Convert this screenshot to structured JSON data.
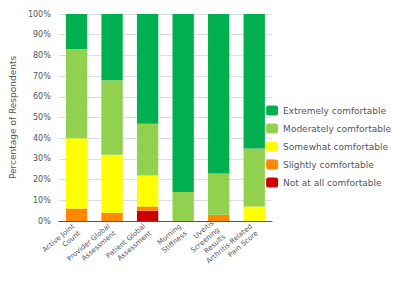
{
  "chart_data": {
    "type": "bar",
    "stacked": true,
    "ylabel": "Percentage of Respondents",
    "categories": [
      "Active Joint\nCount",
      "Provider Global\nAssessment",
      "Patient Global\nAssessment",
      "Morning\nStiffness",
      "Uveitis\nScreening\nResults",
      "Arthritis-Related\nPain Score"
    ],
    "series": [
      {
        "name": "Extremely comfortable",
        "color": "#00b050",
        "values": [
          17,
          32,
          53,
          86,
          77,
          65
        ]
      },
      {
        "name": "Moderately comfortable",
        "color": "#92d050",
        "values": [
          43,
          36,
          25,
          14,
          20,
          28
        ]
      },
      {
        "name": "Somewhat comfortable",
        "color": "#ffff00",
        "values": [
          34,
          28,
          15,
          0,
          0,
          7
        ]
      },
      {
        "name": "Slightly comfortable",
        "color": "#ff8800",
        "values": [
          6,
          4,
          2,
          0,
          3,
          0
        ]
      },
      {
        "name": "Not at all comfortable",
        "color": "#cc0000",
        "values": [
          0,
          0,
          5,
          0,
          0,
          0
        ]
      }
    ],
    "ylim": [
      0,
      100
    ],
    "yticks": [
      {
        "value": 0,
        "label": "0%"
      },
      {
        "value": 10,
        "label": "10%"
      },
      {
        "value": 20,
        "label": "20%"
      },
      {
        "value": 30,
        "label": "30%"
      },
      {
        "value": 40,
        "label": "40%"
      },
      {
        "value": 50,
        "label": "50%"
      },
      {
        "value": 60,
        "label": "60%"
      },
      {
        "value": 70,
        "label": "70%"
      },
      {
        "value": 80,
        "label": "80%"
      },
      {
        "value": 90,
        "label": "90%"
      },
      {
        "value": 100,
        "label": "100%"
      }
    ],
    "grid": true,
    "legend": "right"
  }
}
